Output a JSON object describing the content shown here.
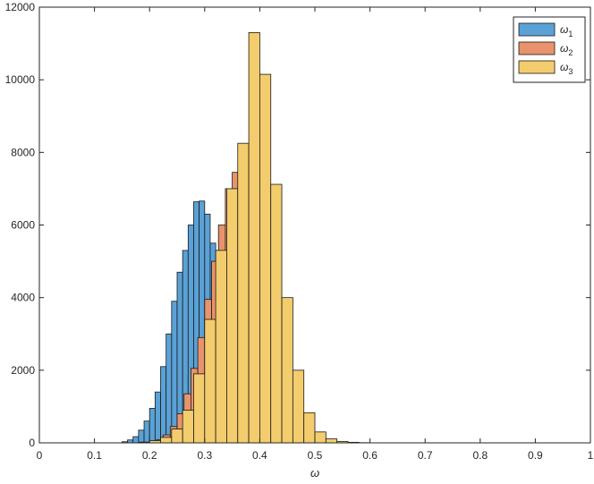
{
  "chart_data": {
    "type": "histogram",
    "xlabel": "ω",
    "ylabel": "",
    "xlim": [
      0,
      1
    ],
    "ylim": [
      0,
      12000
    ],
    "xticks": [
      "0",
      "0.1",
      "0.2",
      "0.3",
      "0.4",
      "0.5",
      "0.6",
      "0.7",
      "0.8",
      "0.9",
      "1"
    ],
    "yticks": [
      "0",
      "2000",
      "4000",
      "6000",
      "8000",
      "10000",
      "12000"
    ],
    "grid": false,
    "legend_position": "top-right",
    "series": [
      {
        "name": "ω",
        "subscript": "1",
        "color": "#5aa2d6",
        "bin_width": 0.01,
        "bins": [
          [
            0.15,
            0.16,
            30
          ],
          [
            0.16,
            0.17,
            80
          ],
          [
            0.17,
            0.18,
            170
          ],
          [
            0.18,
            0.19,
            350
          ],
          [
            0.19,
            0.2,
            600
          ],
          [
            0.2,
            0.21,
            950
          ],
          [
            0.21,
            0.22,
            1400
          ],
          [
            0.22,
            0.23,
            2100
          ],
          [
            0.23,
            0.24,
            3000
          ],
          [
            0.24,
            0.25,
            3900
          ],
          [
            0.25,
            0.26,
            4700
          ],
          [
            0.26,
            0.27,
            5300
          ],
          [
            0.27,
            0.28,
            6000
          ],
          [
            0.28,
            0.29,
            6640
          ],
          [
            0.29,
            0.3,
            6660
          ],
          [
            0.3,
            0.31,
            6300
          ],
          [
            0.31,
            0.32,
            5500
          ],
          [
            0.32,
            0.33,
            4300
          ],
          [
            0.33,
            0.34,
            3000
          ],
          [
            0.34,
            0.35,
            1800
          ],
          [
            0.35,
            0.36,
            1000
          ],
          [
            0.36,
            0.37,
            500
          ],
          [
            0.37,
            0.38,
            200
          ],
          [
            0.38,
            0.39,
            70
          ],
          [
            0.39,
            0.4,
            20
          ]
        ]
      },
      {
        "name": "ω",
        "subscript": "2",
        "color": "#e8936b",
        "bin_width": 0.0125,
        "bins": [
          [
            0.2,
            0.2125,
            30
          ],
          [
            0.2125,
            0.225,
            90
          ],
          [
            0.225,
            0.2375,
            220
          ],
          [
            0.2375,
            0.25,
            450
          ],
          [
            0.25,
            0.2625,
            800
          ],
          [
            0.2625,
            0.275,
            1350
          ],
          [
            0.275,
            0.2875,
            2050
          ],
          [
            0.2875,
            0.3,
            2900
          ],
          [
            0.3,
            0.3125,
            3950
          ],
          [
            0.3125,
            0.325,
            5000
          ],
          [
            0.325,
            0.3375,
            6000
          ],
          [
            0.3375,
            0.35,
            7000
          ],
          [
            0.35,
            0.3625,
            7450
          ],
          [
            0.3625,
            0.375,
            7300
          ],
          [
            0.375,
            0.3875,
            6500
          ],
          [
            0.3875,
            0.4,
            5300
          ],
          [
            0.4,
            0.4125,
            3900
          ],
          [
            0.4125,
            0.425,
            2600
          ],
          [
            0.425,
            0.4375,
            1550
          ],
          [
            0.4375,
            0.45,
            800
          ],
          [
            0.45,
            0.4625,
            380
          ],
          [
            0.4625,
            0.475,
            150
          ],
          [
            0.475,
            0.4875,
            60
          ]
        ]
      },
      {
        "name": "ω",
        "subscript": "3",
        "color": "#f3cd6d",
        "bin_width": 0.02,
        "bins": [
          [
            0.18,
            0.2,
            20
          ],
          [
            0.2,
            0.22,
            60
          ],
          [
            0.22,
            0.24,
            150
          ],
          [
            0.24,
            0.26,
            380
          ],
          [
            0.26,
            0.28,
            900
          ],
          [
            0.28,
            0.3,
            1900
          ],
          [
            0.3,
            0.32,
            3400
          ],
          [
            0.32,
            0.34,
            5300
          ],
          [
            0.34,
            0.36,
            7000
          ],
          [
            0.36,
            0.38,
            8250
          ],
          [
            0.38,
            0.4,
            11300
          ],
          [
            0.4,
            0.42,
            10150
          ],
          [
            0.42,
            0.44,
            7120
          ],
          [
            0.44,
            0.46,
            4000
          ],
          [
            0.46,
            0.48,
            2000
          ],
          [
            0.48,
            0.5,
            830
          ],
          [
            0.5,
            0.52,
            300
          ],
          [
            0.52,
            0.54,
            110
          ],
          [
            0.54,
            0.56,
            40
          ],
          [
            0.56,
            0.58,
            15
          ],
          [
            0.58,
            0.6,
            5
          ]
        ]
      }
    ]
  }
}
